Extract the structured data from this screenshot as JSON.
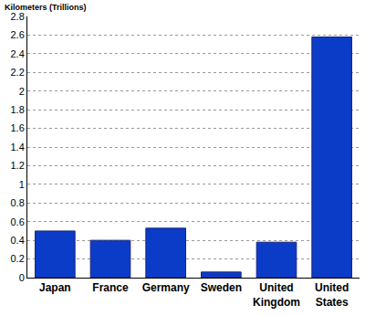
{
  "chart_data": {
    "type": "bar",
    "ylabel": "Kilometers (Trillions)",
    "categories": [
      "Japan",
      "France",
      "Germany",
      "Sweden",
      "United Kingdom",
      "United States"
    ],
    "values": [
      0.5,
      0.4,
      0.53,
      0.06,
      0.38,
      2.58
    ],
    "color": "#0a3cc8",
    "ylim": [
      0,
      2.8
    ],
    "yticks": [
      0,
      0.2,
      0.4,
      0.6,
      0.8,
      1,
      1.2,
      1.4,
      1.6,
      1.8,
      2,
      2.2,
      2.4,
      2.6,
      2.8
    ],
    "grid": true
  }
}
